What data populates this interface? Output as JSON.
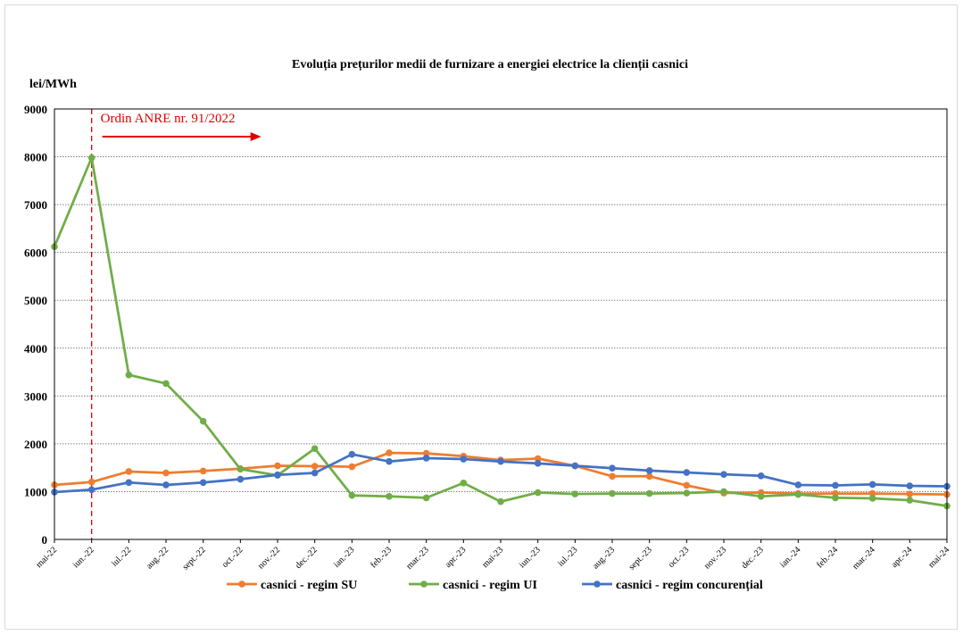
{
  "chart_data": {
    "type": "line",
    "title": "Evoluția prețurilor medii de furnizare a energiei electrice la clienții casnici",
    "ylabel": "lei/MWh",
    "xlabel": "",
    "ylim": [
      0,
      9000
    ],
    "yticks": [
      "0",
      "1000",
      "2000",
      "3000",
      "4000",
      "5000",
      "6000",
      "7000",
      "8000",
      "9000"
    ],
    "grid": true,
    "legend_position": "bottom",
    "categories": [
      "mai-22",
      "iun.-22",
      "iul.-22",
      "aug.-22",
      "sept.-22",
      "oct.-22",
      "nov.-22",
      "dec.-22",
      "ian.-23",
      "feb.-23",
      "mar.-23",
      "apr.-23",
      "mai-23",
      "iun.-23",
      "iul.-23",
      "aug.-23",
      "sept.-23",
      "oct.-23",
      "nov.-23",
      "dec.-23",
      "ian.-24",
      "feb.-24",
      "mar.-24",
      "apr.-24",
      "mai-24"
    ],
    "series": [
      {
        "name": "casnici - regim SU",
        "color": "#ed7d31",
        "values": [
          1140,
          1200,
          1420,
          1390,
          1430,
          1480,
          1540,
          1530,
          1520,
          1810,
          1800,
          1740,
          1660,
          1690,
          1540,
          1320,
          1320,
          1130,
          970,
          980,
          960,
          960,
          960,
          950,
          940
        ]
      },
      {
        "name": "casnici - regim UI",
        "color": "#70ad47",
        "values": [
          6120,
          7980,
          3440,
          3260,
          2470,
          1470,
          1340,
          1900,
          920,
          900,
          870,
          1180,
          790,
          980,
          950,
          960,
          960,
          970,
          1000,
          900,
          940,
          870,
          860,
          820,
          700
        ]
      },
      {
        "name": "casnici - regim concurențial",
        "color": "#4472c4",
        "values": [
          990,
          1040,
          1190,
          1140,
          1190,
          1260,
          1350,
          1390,
          1780,
          1630,
          1700,
          1680,
          1630,
          1590,
          1540,
          1490,
          1440,
          1400,
          1360,
          1330,
          1140,
          1130,
          1150,
          1120,
          1110
        ]
      }
    ],
    "annotation": {
      "text": "Ordin ANRE nr. 91/2022",
      "at_category": "iun.-22",
      "color": "#e00000"
    }
  }
}
